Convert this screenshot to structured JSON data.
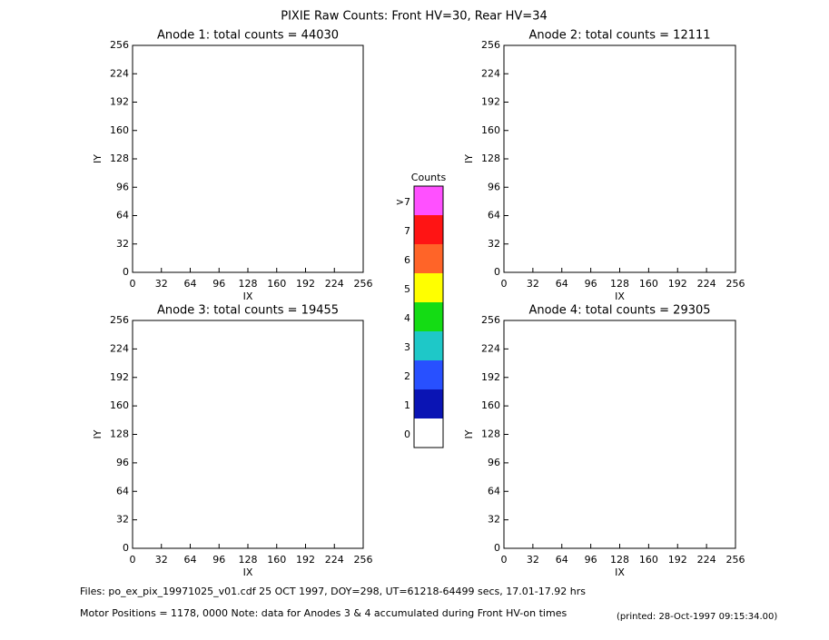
{
  "title": "PIXIE Raw Counts:  Front HV=30, Rear HV=34",
  "chart_data": [
    {
      "type": "heatmap",
      "title": "Anode 1: total counts = 44030",
      "x_label": "IX",
      "y_label": "IY",
      "xlim": [
        0,
        256
      ],
      "ylim": [
        0,
        256
      ],
      "xticks": [
        0,
        32,
        64,
        96,
        128,
        160,
        192,
        224,
        256
      ],
      "yticks": [
        0,
        32,
        64,
        96,
        128,
        160,
        192,
        224,
        256
      ]
    },
    {
      "type": "heatmap",
      "title": "Anode 2: total counts = 12111",
      "x_label": "IX",
      "y_label": "IY",
      "xlim": [
        0,
        256
      ],
      "ylim": [
        0,
        256
      ],
      "xticks": [
        0,
        32,
        64,
        96,
        128,
        160,
        192,
        224,
        256
      ],
      "yticks": [
        0,
        32,
        64,
        96,
        128,
        160,
        192,
        224,
        256
      ]
    },
    {
      "type": "heatmap",
      "title": "Anode 3: total counts = 19455",
      "x_label": "IX",
      "y_label": "IY",
      "xlim": [
        0,
        256
      ],
      "ylim": [
        0,
        256
      ],
      "xticks": [
        0,
        32,
        64,
        96,
        128,
        160,
        192,
        224,
        256
      ],
      "yticks": [
        0,
        32,
        64,
        96,
        128,
        160,
        192,
        224,
        256
      ]
    },
    {
      "type": "heatmap",
      "title": "Anode 4: total counts = 29305",
      "x_label": "IX",
      "y_label": "IY",
      "xlim": [
        0,
        256
      ],
      "ylim": [
        0,
        256
      ],
      "xticks": [
        0,
        32,
        64,
        96,
        128,
        160,
        192,
        224,
        256
      ],
      "yticks": [
        0,
        32,
        64,
        96,
        128,
        160,
        192,
        224,
        256
      ]
    }
  ],
  "colorbar": {
    "title": "Counts",
    "labels": [
      "0",
      "1",
      "2",
      "3",
      "4",
      "5",
      "6",
      "7",
      ">7"
    ],
    "colors": [
      "#ffffff",
      "#0a14b4",
      "#2850ff",
      "#1ec8c8",
      "#14dc14",
      "#ffff00",
      "#ff6428",
      "#ff1414",
      "#ff50ff"
    ]
  },
  "footer": {
    "files": "Files: po_ex_pix_19971025_v01.cdf    25 OCT 1997, DOY=298, UT=61218-64499 secs, 17.01-17.92 hrs",
    "motor": "Motor Positions = 1178, 0000    Note: data for Anodes 3 & 4 accumulated during Front HV-on times",
    "printed": "(printed: 28-Oct-1997 09:15:34.00)"
  }
}
